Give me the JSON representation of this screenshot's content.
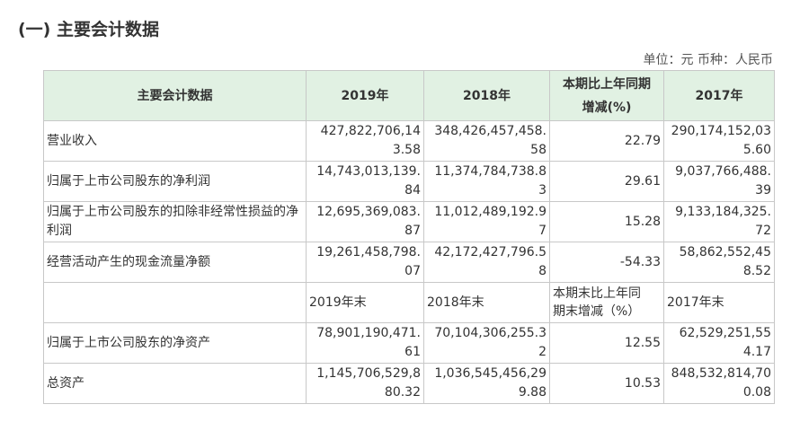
{
  "section_title": "(一) 主要会计数据",
  "unit_line": "单位：元 币种：人民币",
  "header": {
    "col0": "主要会计数据",
    "col1": "2019年",
    "col2": "2018年",
    "col3_line1": "本期比上年同期",
    "col3_line2": "增减(%)",
    "col4": "2017年"
  },
  "rows": [
    {
      "label": "营业收入",
      "y2019": "427,822,706,143.58",
      "y2018": "348,426,457,458.58",
      "change": "22.79",
      "y2017": "290,174,152,035.60"
    },
    {
      "label": "归属于上市公司股东的净利润",
      "y2019": "14,743,013,139.84",
      "y2018": "11,374,784,738.83",
      "change": "29.61",
      "y2017": "9,037,766,488.39"
    },
    {
      "label": "归属于上市公司股东的扣除非经常性损益的净利润",
      "y2019": "12,695,369,083.87",
      "y2018": "11,012,489,192.97",
      "change": "15.28",
      "y2017": "9,133,184,325.72"
    },
    {
      "label": "经营活动产生的现金流量净额",
      "y2019": "19,261,458,798.07",
      "y2018": "42,172,427,796.58",
      "change": "-54.33",
      "y2017": "58,862,552,458.52"
    }
  ],
  "subheader": {
    "col0": "",
    "col1": "2019年末",
    "col2": "2018年末",
    "col3_line1": "本期末比上年同",
    "col3_line2": "期末增减（%）",
    "col4": "2017年末"
  },
  "rows2": [
    {
      "label": "归属于上市公司股东的净资产",
      "y2019": "78,901,190,471.61",
      "y2018": "70,104,306,255.32",
      "change": "12.55",
      "y2017": "62,529,251,554.17"
    },
    {
      "label": "总资产",
      "y2019": "1,145,706,529,880.32",
      "y2018": "1,036,545,456,299.88",
      "change": "10.53",
      "y2017": "848,532,814,700.08"
    }
  ]
}
